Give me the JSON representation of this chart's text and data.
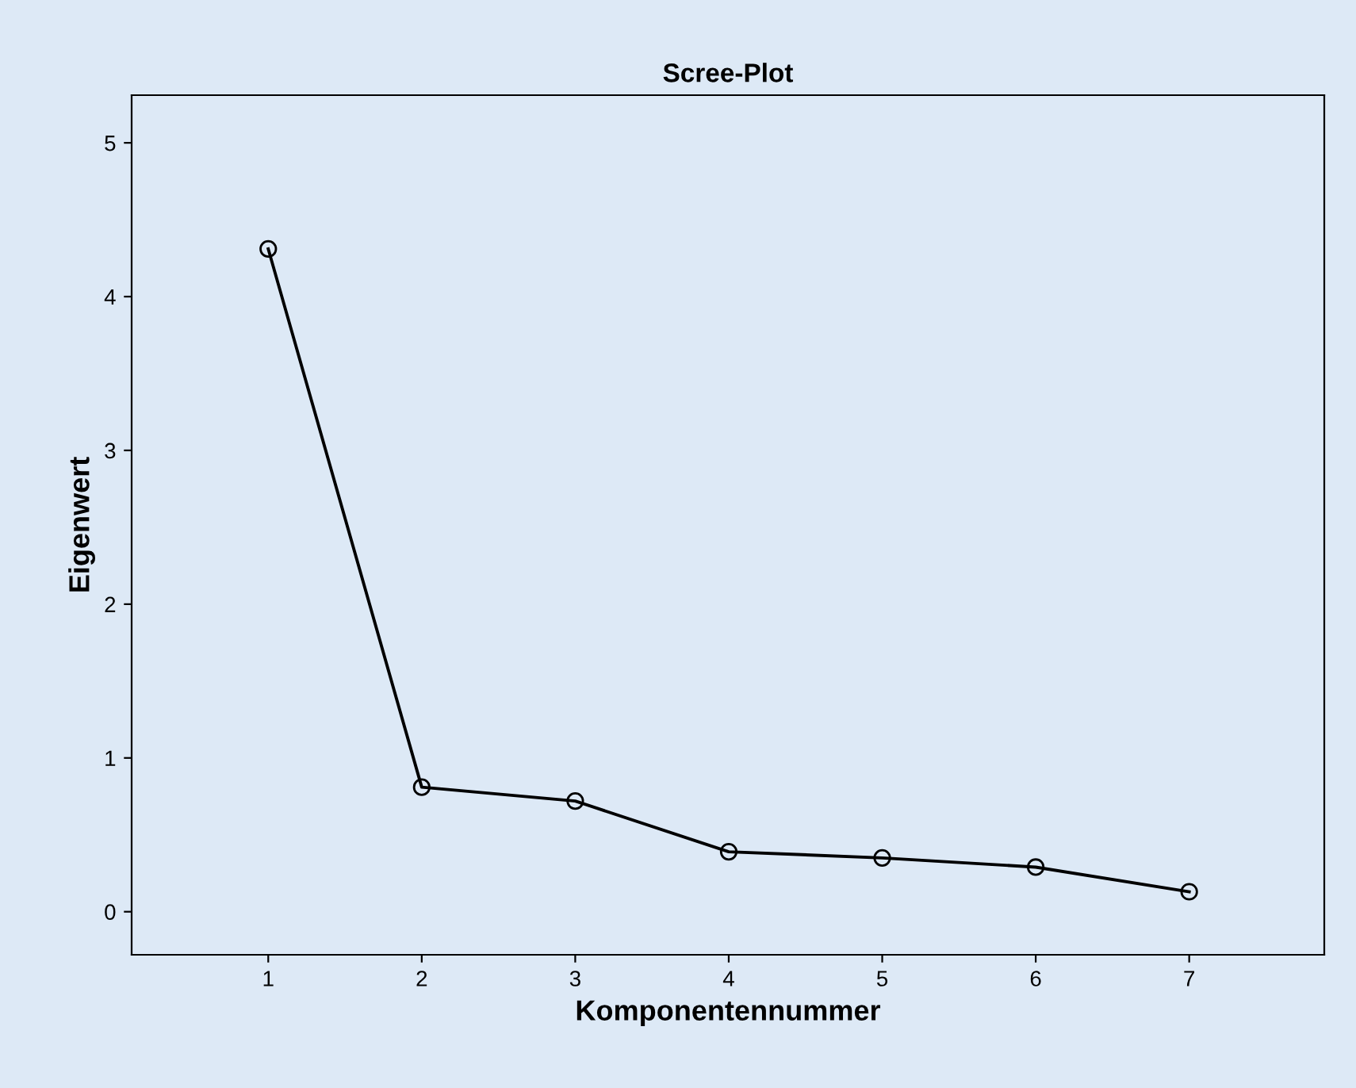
{
  "chart_data": {
    "type": "line",
    "title": "Scree-Plot",
    "xlabel": "Komponentennummer",
    "ylabel": "Eigenwert",
    "x": [
      1,
      2,
      3,
      4,
      5,
      6,
      7
    ],
    "series": [
      {
        "color": "#000000",
        "values": [
          4.31,
          0.81,
          0.72,
          0.39,
          0.35,
          0.29,
          0.13
        ]
      }
    ],
    "xlim": [
      0.11,
      7.88
    ],
    "xticks": [
      1,
      2,
      3,
      4,
      5,
      6,
      7
    ],
    "ylim": [
      -0.28,
      5.31
    ],
    "yticks": [
      0,
      1,
      2,
      3,
      4,
      5
    ],
    "grid": false,
    "marker": "circle",
    "line_style": "solid"
  }
}
